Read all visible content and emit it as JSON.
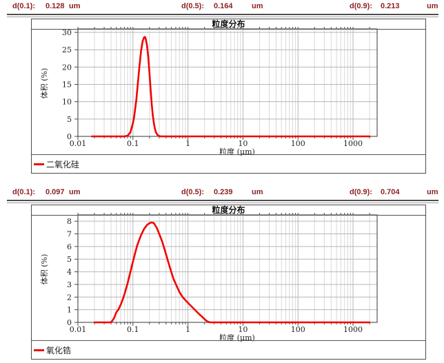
{
  "colors": {
    "header_text": "#8b1f1f",
    "curve_red": "#f20000",
    "grid_minor": "#d8d8d8",
    "grid_major": "#b6b6b6",
    "plot_border": "#555555"
  },
  "panels": [
    {
      "stats": [
        {
          "label": "d(0.1):",
          "value": "0.128",
          "unit": "um"
        },
        {
          "label": "d(0.5):",
          "value": "0.164",
          "unit": "um"
        },
        {
          "label": "d(0.9):",
          "value": "0.213",
          "unit": "um"
        }
      ],
      "chart_data": {
        "type": "line",
        "title": "粒度分布",
        "xlabel": "粒度 (μm)",
        "ylabel": "体积 (%)",
        "xscale": "log",
        "xlim": [
          0.01,
          2740
        ],
        "ylim": [
          0,
          31
        ],
        "xticks": [
          "0.01",
          "0.1",
          "1",
          "10",
          "100",
          "1000"
        ],
        "yticks": [
          0,
          5,
          10,
          15,
          20,
          25,
          30
        ],
        "grid": true,
        "legend_position": "bottom-left",
        "series": [
          {
            "name": "二氧化硅",
            "color": "#f20000",
            "points": [
              [
                0.018,
                0
              ],
              [
                0.07,
                0
              ],
              [
                0.08,
                0.2
              ],
              [
                0.09,
                1.2
              ],
              [
                0.1,
                3.8
              ],
              [
                0.105,
                5.5
              ],
              [
                0.11,
                8
              ],
              [
                0.115,
                10.5
              ],
              [
                0.12,
                13.5
              ],
              [
                0.13,
                19.5
              ],
              [
                0.14,
                24.5
              ],
              [
                0.15,
                27.5
              ],
              [
                0.16,
                28.6
              ],
              [
                0.165,
                28.7
              ],
              [
                0.17,
                28.3
              ],
              [
                0.18,
                26.3
              ],
              [
                0.19,
                22.8
              ],
              [
                0.2,
                18.2
              ],
              [
                0.21,
                13.5
              ],
              [
                0.22,
                9.2
              ],
              [
                0.23,
                6
              ],
              [
                0.24,
                3.8
              ],
              [
                0.25,
                2.3
              ],
              [
                0.26,
                1.3
              ],
              [
                0.28,
                0.4
              ],
              [
                0.3,
                0.1
              ],
              [
                0.32,
                0
              ],
              [
                2000,
                0
              ]
            ]
          }
        ]
      }
    },
    {
      "stats": [
        {
          "label": "d(0.1):",
          "value": "0.097",
          "unit": "um"
        },
        {
          "label": "d(0.5):",
          "value": "0.239",
          "unit": "um"
        },
        {
          "label": "d(0.9):",
          "value": "0.704",
          "unit": "um"
        }
      ],
      "chart_data": {
        "type": "line",
        "title": "粒度分布",
        "xlabel": "粒度 (μm)",
        "ylabel": "体积 (%)",
        "xscale": "log",
        "xlim": [
          0.01,
          2740
        ],
        "ylim": [
          0,
          8.5
        ],
        "xticks": [
          "0.01",
          "0.1",
          "1",
          "10",
          "100",
          "1000"
        ],
        "yticks": [
          0,
          1,
          2,
          3,
          4,
          5,
          6,
          7,
          8
        ],
        "grid": true,
        "legend_position": "bottom-left",
        "series": [
          {
            "name": "氧化锆",
            "color": "#f20000",
            "points": [
              [
                0.02,
                0
              ],
              [
                0.04,
                0
              ],
              [
                0.045,
                0.3
              ],
              [
                0.05,
                0.8
              ],
              [
                0.055,
                1.05
              ],
              [
                0.06,
                1.4
              ],
              [
                0.065,
                1.8
              ],
              [
                0.07,
                2.2
              ],
              [
                0.08,
                3.1
              ],
              [
                0.09,
                4.0
              ],
              [
                0.1,
                4.8
              ],
              [
                0.11,
                5.5
              ],
              [
                0.12,
                6.1
              ],
              [
                0.14,
                6.9
              ],
              [
                0.16,
                7.4
              ],
              [
                0.18,
                7.7
              ],
              [
                0.2,
                7.85
              ],
              [
                0.22,
                7.9
              ],
              [
                0.24,
                7.85
              ],
              [
                0.27,
                7.5
              ],
              [
                0.3,
                7.0
              ],
              [
                0.34,
                6.4
              ],
              [
                0.38,
                5.7
              ],
              [
                0.43,
                4.9
              ],
              [
                0.48,
                4.2
              ],
              [
                0.55,
                3.4
              ],
              [
                0.62,
                2.9
              ],
              [
                0.7,
                2.4
              ],
              [
                0.8,
                2.0
              ],
              [
                0.9,
                1.75
              ],
              [
                1.0,
                1.55
              ],
              [
                1.2,
                1.2
              ],
              [
                1.4,
                0.9
              ],
              [
                1.6,
                0.65
              ],
              [
                1.8,
                0.45
              ],
              [
                2.0,
                0.25
              ],
              [
                2.2,
                0.1
              ],
              [
                2.4,
                0.02
              ],
              [
                2.6,
                0
              ],
              [
                2000,
                0
              ]
            ]
          }
        ]
      }
    }
  ]
}
